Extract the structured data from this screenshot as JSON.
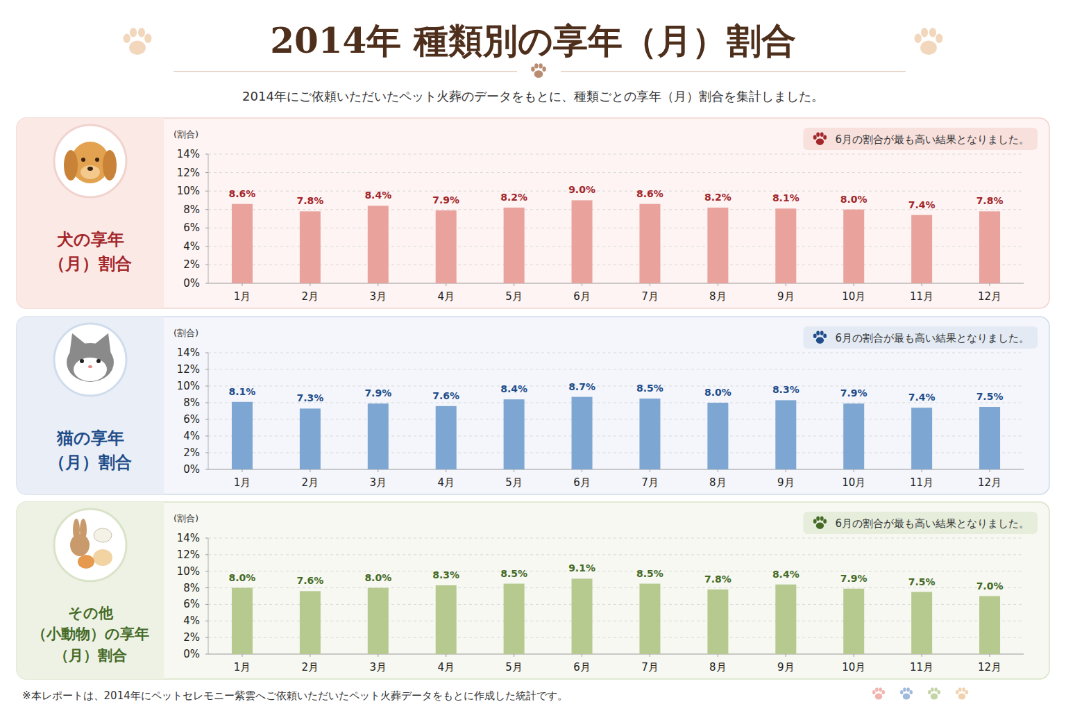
{
  "title": "2014年 種類別の享年（月）割合",
  "subtitle": "2014年にご依頼いただいたペット火葬のデータをもとに、種類ごとの享年（月）割合を集計しました。",
  "footnote": "※本レポートは、2014年にペットセレモニー紫雲へご依頼いただいたペット火葬データをもとに作成した統計です。",
  "chart_data": [
    {
      "type": "bar",
      "title": "犬の享年（月）割合",
      "annotation": "6月の割合が最も高い結果となりました。",
      "y_label": "(割合)",
      "categories": [
        "1月",
        "2月",
        "3月",
        "4月",
        "5月",
        "6月",
        "7月",
        "8月",
        "9月",
        "10月",
        "11月",
        "12月"
      ],
      "values": [
        8.6,
        7.8,
        8.4,
        7.9,
        8.2,
        9.0,
        8.6,
        8.2,
        8.1,
        8.0,
        7.4,
        7.8
      ],
      "value_labels": [
        "8.6%",
        "7.8%",
        "8.4%",
        "7.9%",
        "8.2%",
        "9.0%",
        "8.6%",
        "8.2%",
        "8.1%",
        "8.0%",
        "7.4%",
        "7.8%"
      ],
      "color": "#e9a29c",
      "ylim": [
        0,
        14
      ],
      "yticks": [
        {
          "value": 0,
          "label": "0%"
        },
        {
          "value": 2,
          "label": "2%"
        },
        {
          "value": 4,
          "label": "4%"
        },
        {
          "value": 6,
          "label": "6%"
        },
        {
          "value": 8,
          "label": "8%"
        },
        {
          "value": 10,
          "label": "10%"
        },
        {
          "value": 12,
          "label": "12%"
        },
        {
          "value": 14,
          "label": "14%"
        }
      ],
      "grid": true,
      "data_labels": true
    },
    {
      "type": "bar",
      "title": "猫の享年（月）割合",
      "annotation": "6月の割合が最も高い結果となりました。",
      "y_label": "(割合)",
      "categories": [
        "1月",
        "2月",
        "3月",
        "4月",
        "5月",
        "6月",
        "7月",
        "8月",
        "9月",
        "10月",
        "11月",
        "12月"
      ],
      "values": [
        8.1,
        7.3,
        7.9,
        7.6,
        8.4,
        8.7,
        8.5,
        8.0,
        8.3,
        7.9,
        7.4,
        7.5
      ],
      "value_labels": [
        "8.1%",
        "7.3%",
        "7.9%",
        "7.6%",
        "8.4%",
        "8.7%",
        "8.5%",
        "8.0%",
        "8.3%",
        "7.9%",
        "7.4%",
        "7.5%"
      ],
      "color": "#7ea6d2",
      "ylim": [
        0,
        14
      ],
      "yticks": [
        {
          "value": 0,
          "label": "0%"
        },
        {
          "value": 2,
          "label": "2%"
        },
        {
          "value": 4,
          "label": "4%"
        },
        {
          "value": 6,
          "label": "6%"
        },
        {
          "value": 8,
          "label": "8%"
        },
        {
          "value": 10,
          "label": "10%"
        },
        {
          "value": 12,
          "label": "12%"
        },
        {
          "value": 14,
          "label": "14%"
        }
      ],
      "grid": true,
      "data_labels": true
    },
    {
      "type": "bar",
      "title": "その他（小動物）の享年（月）割合",
      "annotation": "6月の割合が最も高い結果となりました。",
      "y_label": "(割合)",
      "categories": [
        "1月",
        "2月",
        "3月",
        "4月",
        "5月",
        "6月",
        "7月",
        "8月",
        "9月",
        "10月",
        "11月",
        "12月"
      ],
      "values": [
        8.0,
        7.6,
        8.0,
        8.3,
        8.5,
        9.1,
        8.5,
        7.8,
        8.4,
        7.9,
        7.5,
        7.0
      ],
      "value_labels": [
        "8.0%",
        "7.6%",
        "8.0%",
        "8.3%",
        "8.5%",
        "9.1%",
        "8.5%",
        "7.8%",
        "8.4%",
        "7.9%",
        "7.5%",
        "7.0%"
      ],
      "color": "#b6ca90",
      "ylim": [
        0,
        14
      ],
      "yticks": [
        {
          "value": 0,
          "label": "0%"
        },
        {
          "value": 2,
          "label": "2%"
        },
        {
          "value": 4,
          "label": "4%"
        },
        {
          "value": 6,
          "label": "6%"
        },
        {
          "value": 8,
          "label": "8%"
        },
        {
          "value": 10,
          "label": "10%"
        },
        {
          "value": 12,
          "label": "12%"
        },
        {
          "value": 14,
          "label": "14%"
        }
      ],
      "grid": true,
      "data_labels": true
    }
  ]
}
